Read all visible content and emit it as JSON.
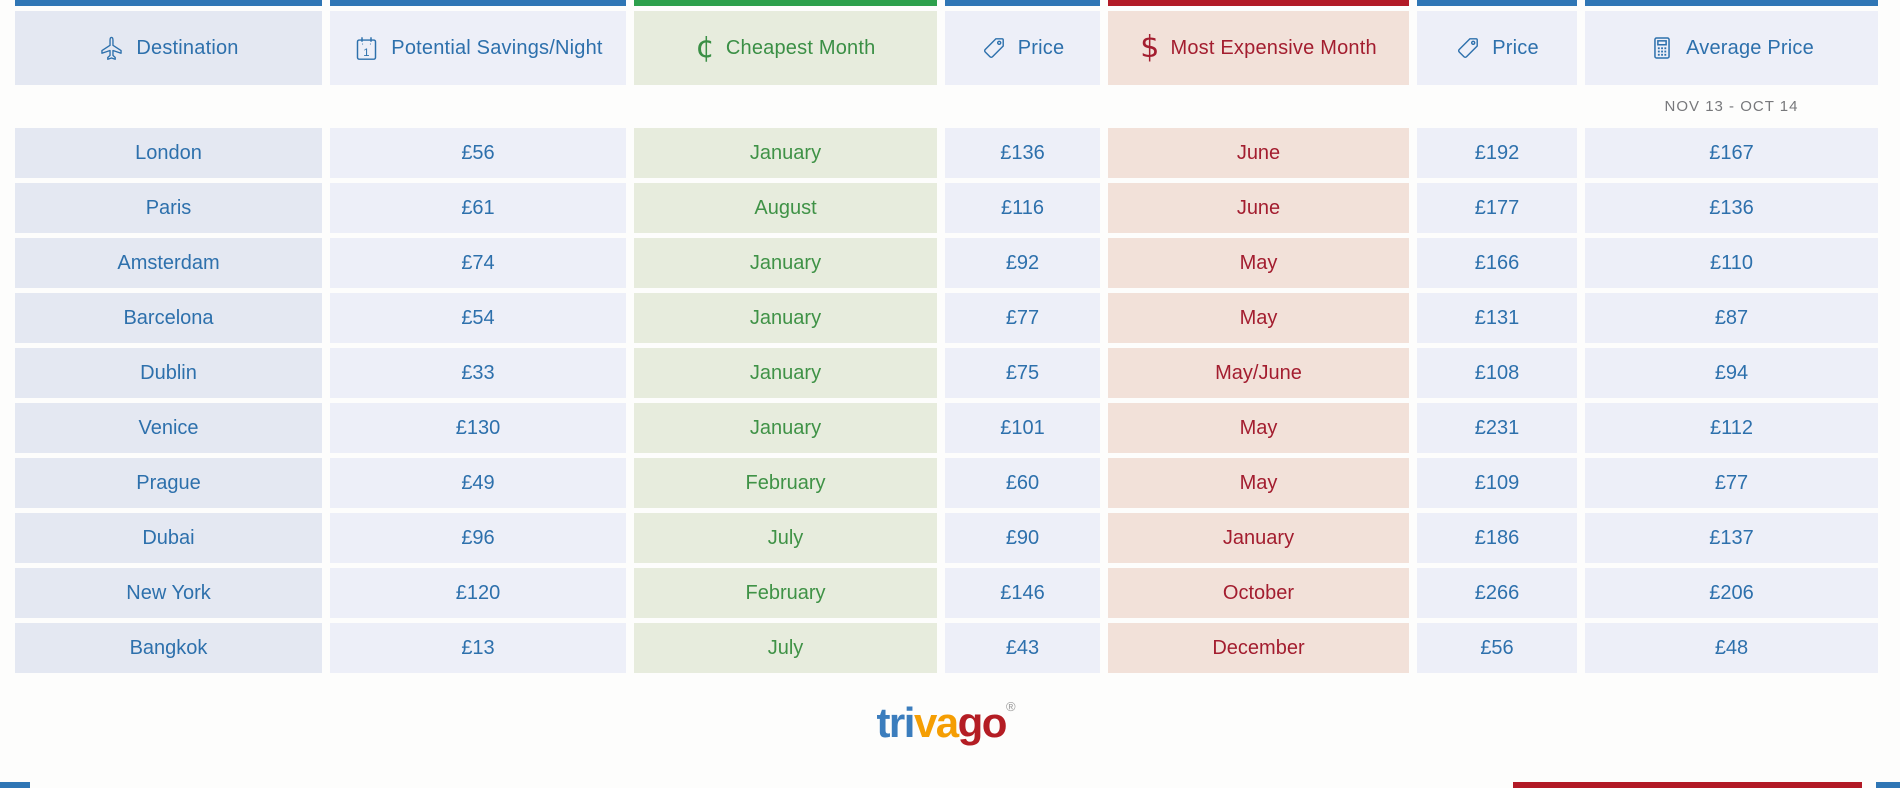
{
  "page": {
    "background": "#fdfdfc"
  },
  "brand": {
    "logo_text_parts": [
      {
        "text": "tri",
        "color": "#3b7dbd"
      },
      {
        "text": "va",
        "color": "#f59e03"
      },
      {
        "text": "go",
        "color": "#b41d24"
      }
    ],
    "registered_mark": "®"
  },
  "table": {
    "period": "NOV 13 - OCT 14",
    "columns": [
      {
        "label": "Destination",
        "icon": "airplane-icon",
        "bar_color": "#2f76b5",
        "bg_color": "#e4e8f2",
        "text_color": "#2d70ac"
      },
      {
        "label": "Potential Savings/Night",
        "icon": "calendar-icon",
        "bar_color": "#2f76b5",
        "bg_color": "#edeff8",
        "text_color": "#2d70ac"
      },
      {
        "label": "Cheapest Month",
        "icon": "cent-icon",
        "bar_color": "#2da04c",
        "bg_color": "#e7ecdd",
        "text_color": "#3a8f45"
      },
      {
        "label": "Price",
        "icon": "price-tag-icon",
        "bar_color": "#2f76b5",
        "bg_color": "#edeff8",
        "text_color": "#2d70ac"
      },
      {
        "label": "Most Expensive Month",
        "icon": "dollar-icon",
        "bar_color": "#b21a26",
        "bg_color": "#f2e1d9",
        "text_color": "#a31d2f"
      },
      {
        "label": "Price",
        "icon": "price-tag-icon",
        "bar_color": "#2f76b5",
        "bg_color": "#edeff8",
        "text_color": "#2d70ac"
      },
      {
        "label": "Average Price",
        "icon": "calculator-icon",
        "bar_color": "#2f76b5",
        "bg_color": "#edeff8",
        "text_color": "#2d70ac"
      }
    ],
    "rows": [
      {
        "values": [
          "London",
          "£56",
          "January",
          "£136",
          "June",
          "£192",
          "£167"
        ]
      },
      {
        "values": [
          "Paris",
          "£61",
          "August",
          "£116",
          "June",
          "£177",
          "£136"
        ]
      },
      {
        "values": [
          "Amsterdam",
          "£74",
          "January",
          "£92",
          "May",
          "£166",
          "£110"
        ]
      },
      {
        "values": [
          "Barcelona",
          "£54",
          "January",
          "£77",
          "May",
          "£131",
          "£87"
        ]
      },
      {
        "values": [
          "Dublin",
          "£33",
          "January",
          "£75",
          "May/June",
          "£108",
          "£94"
        ]
      },
      {
        "values": [
          "Venice",
          "£130",
          "January",
          "£101",
          "May",
          "£231",
          "£112"
        ]
      },
      {
        "values": [
          "Prague",
          "£49",
          "February",
          "£60",
          "May",
          "£109",
          "£77"
        ]
      },
      {
        "values": [
          "Dubai",
          "£96",
          "July",
          "£90",
          "January",
          "£186",
          "£137"
        ]
      },
      {
        "values": [
          "New York",
          "£120",
          "February",
          "£146",
          "October",
          "£266",
          "£206"
        ]
      },
      {
        "values": [
          "Bangkok",
          "£13",
          "July",
          "£43",
          "December",
          "£56",
          "£48"
        ]
      }
    ]
  },
  "footer_crop_strips": [
    {
      "position": "bottom-left",
      "color": "#2f76b5"
    },
    {
      "position": "bottom-right",
      "color": "#b21a26"
    },
    {
      "position": "bottom-right-edge",
      "color": "#2f76b5"
    }
  ],
  "chart_data": {
    "type": "table",
    "title": "Cheapest and most expensive months to travel by destination (trivago)",
    "period": "NOV 13 - OCT 14",
    "columns": [
      "Destination",
      "Potential Savings/Night",
      "Cheapest Month",
      "Price",
      "Most Expensive Month",
      "Price",
      "Average Price"
    ],
    "rows": [
      [
        "London",
        "£56",
        "January",
        "£136",
        "June",
        "£192",
        "£167"
      ],
      [
        "Paris",
        "£61",
        "August",
        "£116",
        "June",
        "£177",
        "£136"
      ],
      [
        "Amsterdam",
        "£74",
        "January",
        "£92",
        "May",
        "£166",
        "£110"
      ],
      [
        "Barcelona",
        "£54",
        "January",
        "£77",
        "May",
        "£131",
        "£87"
      ],
      [
        "Dublin",
        "£33",
        "January",
        "£75",
        "May/June",
        "£108",
        "£94"
      ],
      [
        "Venice",
        "£130",
        "January",
        "£101",
        "May",
        "£231",
        "£112"
      ],
      [
        "Prague",
        "£49",
        "February",
        "£60",
        "May",
        "£109",
        "£77"
      ],
      [
        "Dubai",
        "£96",
        "July",
        "£90",
        "January",
        "£186",
        "£137"
      ],
      [
        "New York",
        "£120",
        "February",
        "£146",
        "October",
        "£266",
        "£206"
      ],
      [
        "Bangkok",
        "£13",
        "July",
        "£43",
        "December",
        "£56",
        "£48"
      ]
    ]
  }
}
